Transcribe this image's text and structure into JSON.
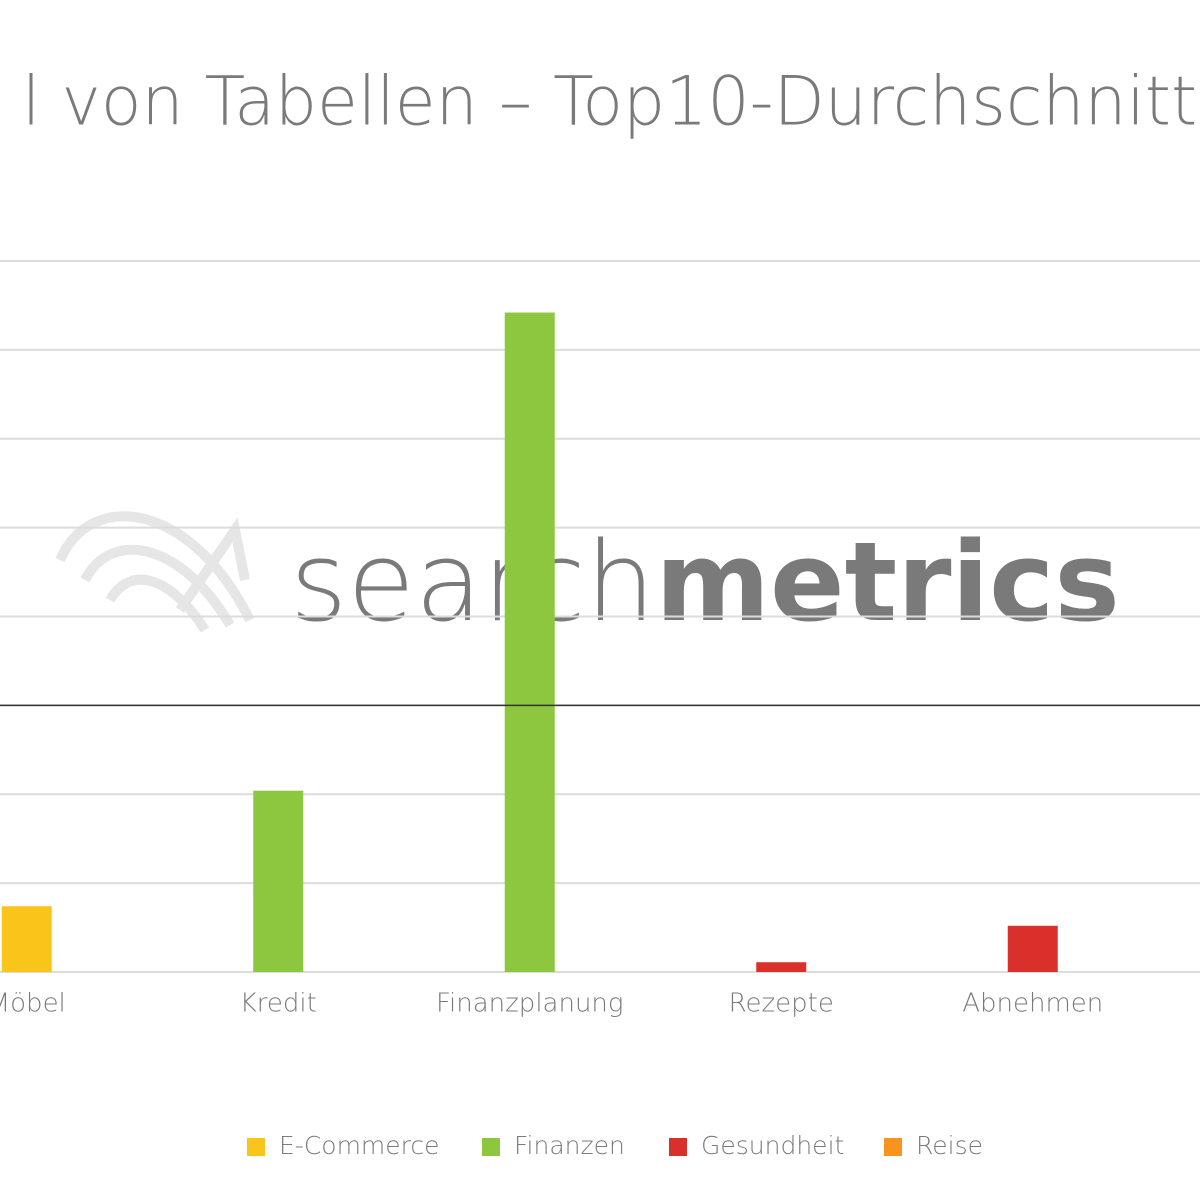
{
  "chart_data": {
    "type": "bar",
    "title": "l von Tabellen – Top10-Durchschnitt",
    "watermark": [
      "search",
      "metrics"
    ],
    "categories": [
      "Möbel",
      "Kredit",
      "Finanzplanung",
      "Rezepte",
      "Abnehmen"
    ],
    "series": [
      {
        "name": "E-Commerce",
        "color": "#f9c51b",
        "values": [
          0.74,
          null,
          null,
          null,
          null
        ]
      },
      {
        "name": "Finanzen",
        "color": "#8dc63f",
        "values": [
          null,
          2.04,
          7.42,
          null,
          null
        ]
      },
      {
        "name": "Gesundheit",
        "color": "#d9302c",
        "values": [
          null,
          null,
          null,
          0.11,
          0.52
        ]
      },
      {
        "name": "Reise",
        "color": "#f7941d",
        "values": [
          null,
          null,
          null,
          null,
          null
        ]
      }
    ],
    "ylim": [
      0,
      8
    ],
    "yticks": [
      0,
      1,
      2,
      3,
      4,
      5,
      6,
      7,
      8
    ],
    "grid": true,
    "reference_line": 3,
    "legend": "bottom"
  }
}
